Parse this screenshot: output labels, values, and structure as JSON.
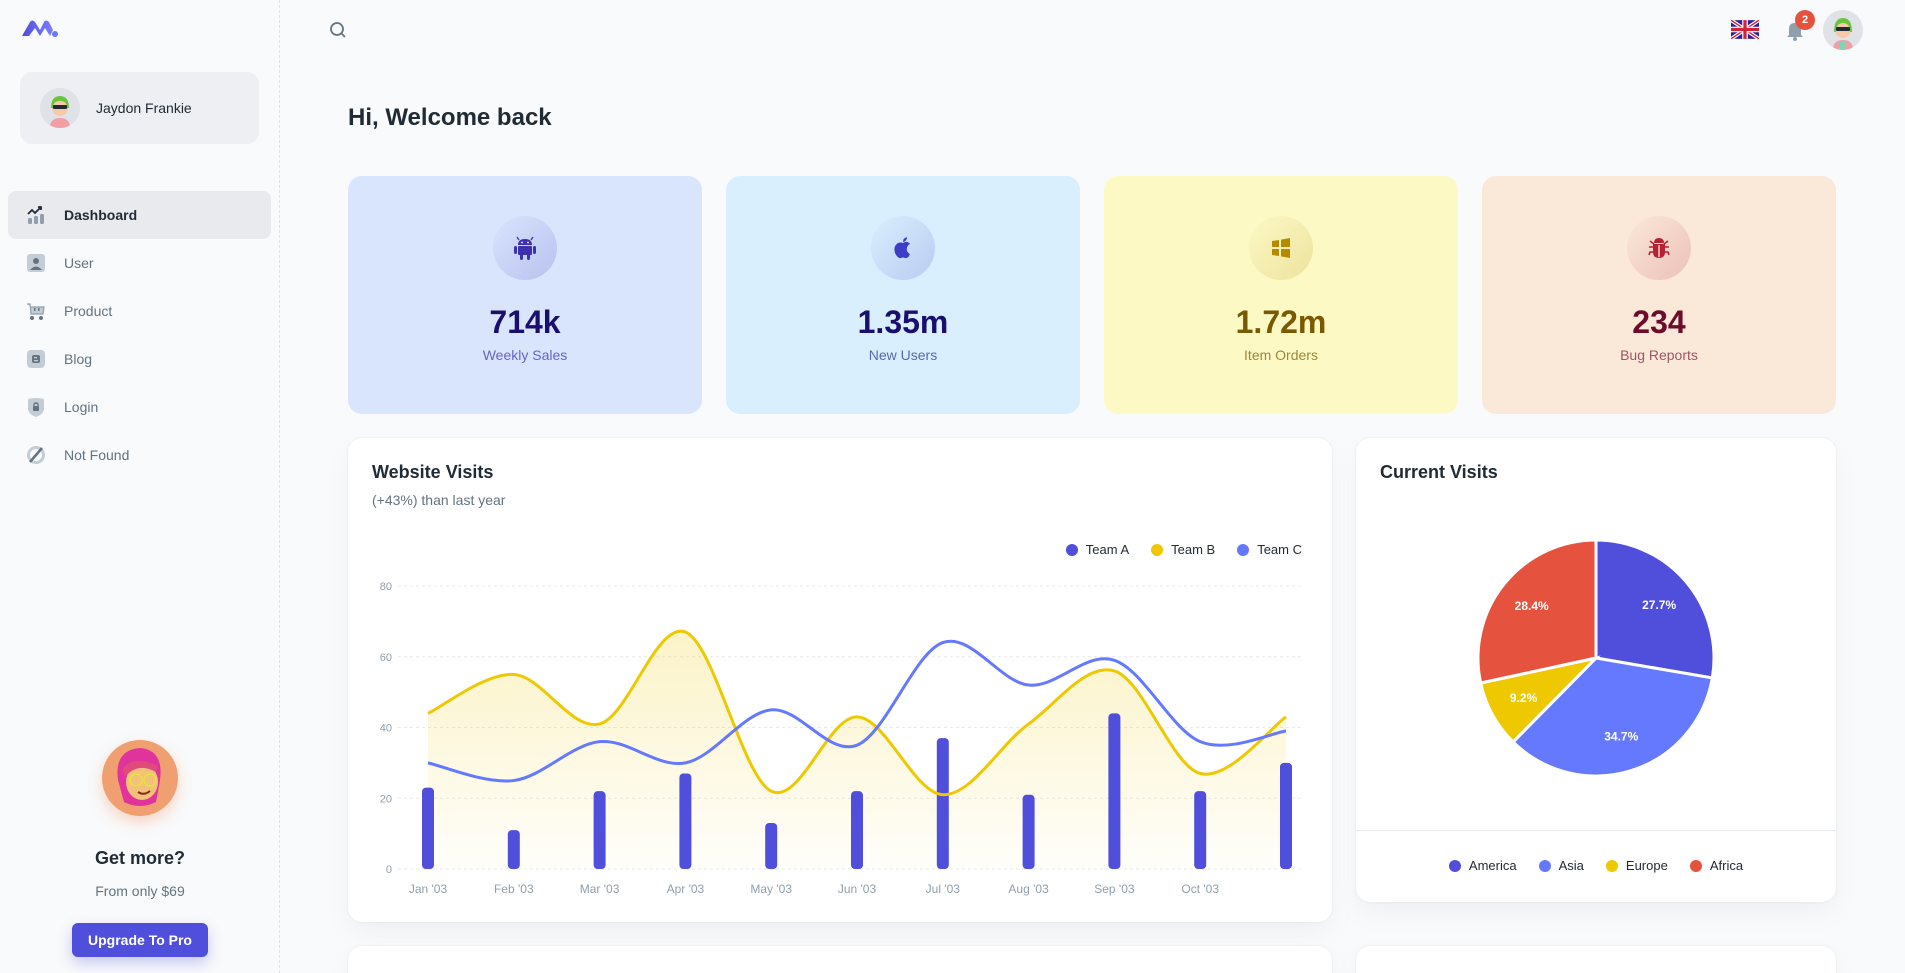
{
  "app": {
    "logo_icon": "minimal-logo-icon"
  },
  "account": {
    "name": "Jaydon Frankie"
  },
  "sidebar": {
    "items": [
      {
        "label": "Dashboard",
        "icon": "chart-icon",
        "active": true
      },
      {
        "label": "User",
        "icon": "user-icon",
        "active": false
      },
      {
        "label": "Product",
        "icon": "cart-icon",
        "active": false
      },
      {
        "label": "Blog",
        "icon": "blog-icon",
        "active": false
      },
      {
        "label": "Login",
        "icon": "lock-icon",
        "active": false
      },
      {
        "label": "Not Found",
        "icon": "disabled-icon",
        "active": false
      }
    ],
    "promo": {
      "title": "Get more?",
      "subtitle": "From only $69",
      "button": "Upgrade To Pro"
    }
  },
  "header": {
    "notifications_count": "2",
    "language": "English"
  },
  "page": {
    "title": "Hi, Welcome back"
  },
  "stats": [
    {
      "value": "714k",
      "label": "Weekly Sales",
      "icon": "android-icon",
      "bg": "#d8e5fd",
      "fg": "#1a0e6e",
      "icon_color": "#3d31b0",
      "label_color": "#3d31b0"
    },
    {
      "value": "1.35m",
      "label": "New Users",
      "icon": "apple-icon",
      "bg": "#d9effd",
      "fg": "#1a0e6e",
      "icon_color": "#3d3dc8",
      "label_color": "#2d3190"
    },
    {
      "value": "1.72m",
      "label": "Item Orders",
      "icon": "windows-icon",
      "bg": "#fcf9c5",
      "fg": "#7a5a00",
      "icon_color": "#b38a00",
      "label_color": "#7a5a00"
    },
    {
      "value": "234",
      "label": "Bug Reports",
      "icon": "bug-icon",
      "bg": "#fae8d9",
      "fg": "#6d0b2c",
      "icon_color": "#b72136",
      "label_color": "#7a1a3a"
    }
  ],
  "chart_data": [
    {
      "type": "line",
      "title": "Website Visits",
      "subtitle": "(+43%) than last year",
      "legend_position": "top-right",
      "x": [
        "Jan '03",
        "Feb '03",
        "Mar '03",
        "Apr '03",
        "May '03",
        "Jun '03",
        "Jul '03",
        "Aug '03",
        "Sep '03",
        "Oct '03",
        ""
      ],
      "ylim": [
        0,
        80
      ],
      "yticks": [
        0,
        20,
        40,
        60,
        80
      ],
      "grid": true,
      "series": [
        {
          "name": "Team A",
          "type": "bar",
          "color": "#4f4fdb",
          "values": [
            23,
            11,
            22,
            27,
            13,
            22,
            37,
            21,
            44,
            22,
            30
          ]
        },
        {
          "name": "Team B",
          "type": "area",
          "color": "#eec800",
          "values": [
            44,
            55,
            41,
            67,
            22,
            43,
            21,
            41,
            56,
            27,
            43
          ]
        },
        {
          "name": "Team C",
          "type": "line",
          "color": "#6479fd",
          "values": [
            30,
            25,
            36,
            30,
            45,
            35,
            64,
            52,
            59,
            36,
            39
          ]
        }
      ]
    },
    {
      "type": "pie",
      "title": "Current Visits",
      "legend_position": "bottom",
      "labels": [
        "America",
        "Asia",
        "Europe",
        "Africa"
      ],
      "values": [
        27.7,
        34.7,
        9.2,
        28.4
      ],
      "value_labels": [
        "27.7%",
        "34.7%",
        "9.2%",
        "28.4%"
      ],
      "colors": [
        "#4f4fdb",
        "#6479fd",
        "#eec800",
        "#e5533f"
      ]
    }
  ]
}
